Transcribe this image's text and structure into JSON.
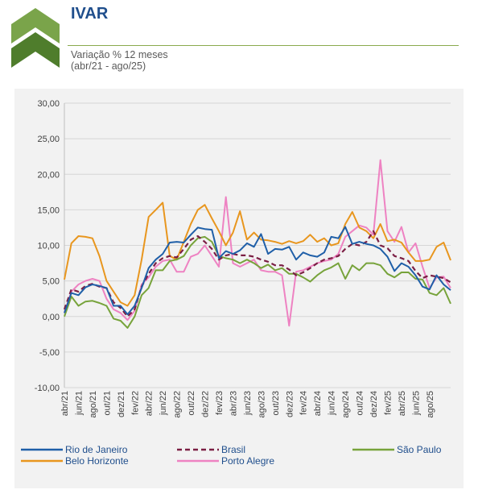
{
  "header": {
    "title": "IVAR",
    "subtitle_line1": "Variação % 12 meses",
    "subtitle_line2": "(abr/21 - ago/25)",
    "logo_color": "#5b8c3a"
  },
  "chart_data": {
    "type": "line",
    "ylim": [
      -10,
      30
    ],
    "yticks": [
      "30,00",
      "25,00",
      "20,00",
      "15,00",
      "10,00",
      "5,00",
      "0,00",
      "-5,00",
      "-10,00"
    ],
    "ytick_values": [
      30,
      25,
      20,
      15,
      10,
      5,
      0,
      -5,
      -10
    ],
    "x_tick_labels": [
      "abr/21",
      "jun/21",
      "ago/21",
      "out/21",
      "dez/21",
      "fev/22",
      "abr/22",
      "jun/22",
      "ago/22",
      "out/22",
      "dez/22",
      "fev/23",
      "abr/23",
      "jun/23",
      "ago/23",
      "out/23",
      "dez/23",
      "fev/24",
      "abr/24",
      "jun/24",
      "ago/24",
      "out/24",
      "dez/24",
      "fev/25",
      "abr/25",
      "jun/25",
      "ago/25"
    ],
    "grid": true,
    "legend_position": "bottom",
    "series": [
      {
        "name": "Rio de Janeiro",
        "color": "#1f5fa8",
        "dash": "solid",
        "values": [
          0.5,
          3.3,
          3.0,
          4.1,
          4.5,
          4.3,
          4.0,
          1.5,
          1.5,
          0.3,
          1.5,
          4.0,
          6.8,
          8.0,
          8.8,
          10.4,
          10.5,
          10.4,
          11.5,
          12.5,
          12.3,
          12.2,
          8.2,
          9.2,
          8.8,
          9.3,
          10.3,
          9.8,
          11.6,
          8.8,
          9.5,
          9.4,
          9.8,
          8.0,
          9.0,
          8.6,
          8.4,
          9.0,
          11.2,
          11.0,
          12.6,
          10.2,
          10.5,
          10.2,
          10.0,
          9.5,
          8.4,
          6.4,
          7.5,
          7.0,
          5.8,
          4.2,
          3.8,
          5.8,
          4.5,
          3.7
        ]
      },
      {
        "name": "Brasil",
        "color": "#7b1f44",
        "dash": "dashed",
        "values": [
          1.0,
          3.8,
          3.5,
          4.3,
          4.6,
          4.2,
          4.0,
          2.0,
          1.2,
          0.0,
          1.0,
          4.2,
          6.0,
          7.5,
          8.2,
          8.5,
          8.3,
          9.5,
          10.8,
          11.3,
          10.5,
          9.5,
          8.0,
          8.6,
          8.8,
          8.6,
          8.6,
          8.4,
          8.0,
          7.7,
          7.2,
          7.2,
          6.6,
          5.8,
          6.2,
          6.8,
          7.5,
          8.0,
          8.2,
          8.5,
          9.5,
          10.2,
          10.0,
          10.5,
          12.0,
          10.0,
          9.6,
          8.5,
          8.2,
          7.8,
          6.4,
          5.4,
          5.8,
          5.6,
          5.4,
          4.8
        ]
      },
      {
        "name": "São Paulo",
        "color": "#77a33b",
        "dash": "solid",
        "values": [
          0.0,
          2.8,
          1.5,
          2.1,
          2.2,
          1.9,
          1.5,
          -0.3,
          -0.6,
          -1.6,
          0.0,
          3.0,
          4.0,
          6.5,
          6.5,
          7.8,
          8.0,
          8.5,
          10.0,
          11.0,
          11.2,
          10.5,
          8.5,
          8.2,
          8.0,
          7.5,
          8.0,
          7.5,
          6.8,
          7.3,
          6.5,
          6.8,
          6.0,
          6.0,
          5.5,
          4.9,
          5.8,
          6.5,
          6.9,
          7.5,
          5.3,
          7.2,
          6.5,
          7.5,
          7.5,
          7.2,
          6.0,
          5.5,
          6.2,
          6.2,
          5.3,
          5.2,
          3.3,
          3.0,
          4.0,
          1.8
        ]
      },
      {
        "name": "Belo Horizonte",
        "color": "#e8961e",
        "dash": "solid",
        "values": [
          5.2,
          10.3,
          11.3,
          11.2,
          11.0,
          8.5,
          5.0,
          3.5,
          2.0,
          1.5,
          3.0,
          8.0,
          14.0,
          15.0,
          16.0,
          8.5,
          8.0,
          10.5,
          13.0,
          15.0,
          15.7,
          13.8,
          12.0,
          10.0,
          11.8,
          14.8,
          10.8,
          11.8,
          10.8,
          10.7,
          10.5,
          10.2,
          10.6,
          10.3,
          10.6,
          11.5,
          10.5,
          11.0,
          10.0,
          10.3,
          13.0,
          14.7,
          12.5,
          12.0,
          11.0,
          13.0,
          10.6,
          10.8,
          10.4,
          9.0,
          7.8,
          7.8,
          8.0,
          9.8,
          10.4,
          7.9
        ]
      },
      {
        "name": "Porto Alegre",
        "color": "#ee82c2",
        "dash": "solid",
        "values": [
          0.5,
          3.5,
          4.5,
          5.0,
          5.3,
          5.0,
          2.5,
          1.0,
          0.5,
          -0.5,
          0.8,
          4.5,
          5.5,
          7.0,
          7.8,
          8.0,
          6.3,
          6.3,
          8.4,
          8.8,
          10.0,
          8.5,
          7.0,
          16.8,
          7.5,
          7.0,
          7.5,
          8.0,
          6.5,
          6.3,
          6.3,
          5.8,
          -1.3,
          6.3,
          6.5,
          7.0,
          7.5,
          7.8,
          8.0,
          8.8,
          11.2,
          12.0,
          12.8,
          12.5,
          11.5,
          22.0,
          12.0,
          10.5,
          12.6,
          9.0,
          10.3,
          7.0,
          4.0,
          5.5,
          5.6,
          4.0
        ]
      }
    ]
  }
}
